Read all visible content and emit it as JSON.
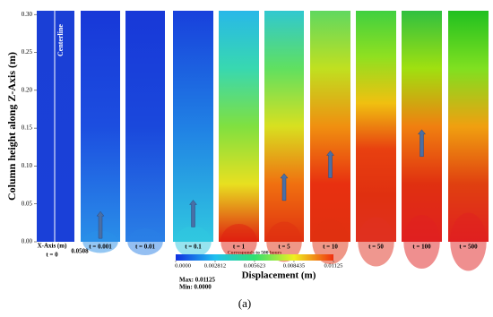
{
  "chart_data": {
    "type": "contour-panels",
    "ylabel": "Column height along Z-Axis (m)",
    "ylim": [
      0,
      0.305
    ],
    "yticks": [
      {
        "value": 0,
        "label": "0.00"
      },
      {
        "value": 0.05,
        "label": "0.05"
      },
      {
        "value": 0.1,
        "label": "0.10"
      },
      {
        "value": 0.15,
        "label": "0.15"
      },
      {
        "value": 0.2,
        "label": "0.20"
      },
      {
        "value": 0.25,
        "label": "0.25"
      },
      {
        "value": 0.3,
        "label": "0.30"
      }
    ],
    "centerline": "Centerline",
    "x_axis_label": "X-Axis (m)",
    "x_max_label": "0.0508",
    "panels": [
      {
        "label": "t = 0",
        "front": null,
        "colors": [
          "#1a3fd6",
          "#1a40d8"
        ]
      },
      {
        "label": "t = 0.001",
        "front": 0.04,
        "colors": [
          "#1838d8",
          "#1c4ee0",
          "#2a8fe8"
        ]
      },
      {
        "label": "t = 0.01",
        "front": null,
        "colors": [
          "#1838d8",
          "#1a48dc",
          "#2a80e6"
        ]
      },
      {
        "label": "t = 0.1",
        "front": 0.055,
        "colors": [
          "#1840dc",
          "#2080e4",
          "#30c8e0"
        ]
      },
      {
        "label": "t = 1",
        "front": null,
        "colors": [
          "#28b8e8",
          "#38d8b0",
          "#80e040",
          "#e8e020",
          "#e02010"
        ]
      },
      {
        "label": "t = 5",
        "front": 0.09,
        "colors": [
          "#30c8d0",
          "#60e060",
          "#d8e020",
          "#f07010",
          "#e03010"
        ]
      },
      {
        "label": "t = 10",
        "front": 0.12,
        "colors": [
          "#60d860",
          "#c0e020",
          "#f09010",
          "#e83010",
          "#e03010"
        ]
      },
      {
        "label": "t = 50",
        "front": null,
        "colors": [
          "#40d040",
          "#90e020",
          "#f0c010",
          "#e84010",
          "#e03010",
          "#e03020"
        ]
      },
      {
        "label": "t = 100",
        "front": 0.148,
        "colors": [
          "#30c040",
          "#a0e010",
          "#f08010",
          "#e03010",
          "#e02020"
        ]
      },
      {
        "label": "t = 500",
        "front": null,
        "colors": [
          "#20c020",
          "#80e020",
          "#f0a010",
          "#e04010",
          "#e02020"
        ]
      }
    ],
    "colorbar": {
      "label": "Displacement (m)",
      "note": "Corresponds to 500 hours",
      "clim": [
        0,
        0.01125
      ],
      "ticks": [
        {
          "value": 0,
          "label": "0.0000"
        },
        {
          "value": 0.002812,
          "label": "0.002812"
        },
        {
          "value": 0.005623,
          "label": "0.005623"
        },
        {
          "value": 0.008435,
          "label": "0.008435"
        },
        {
          "value": 0.01125,
          "label": "0.01125"
        }
      ],
      "max": "Max: 0.01125",
      "min": "Min: 0.0000",
      "colors": [
        "#1030e0",
        "#20c0f0",
        "#30e070",
        "#f0f020",
        "#f03010"
      ]
    },
    "caption": "(a)"
  }
}
